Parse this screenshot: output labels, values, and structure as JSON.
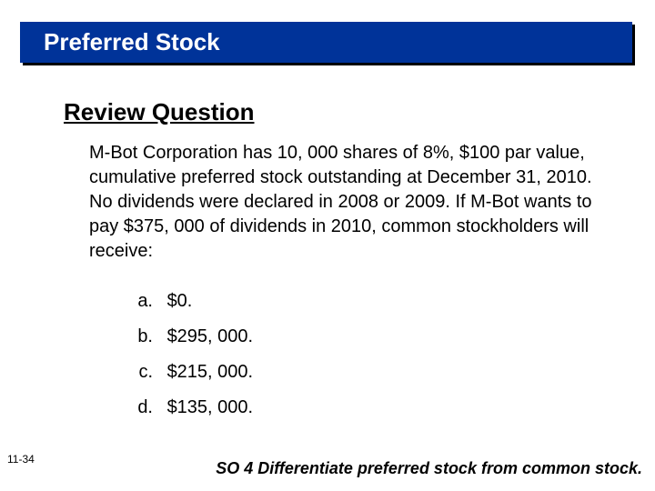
{
  "title": "Preferred Stock",
  "subtitle": "Review Question",
  "body": "M-Bot Corporation has 10, 000 shares of 8%, $100 par value, cumulative preferred stock outstanding at December 31, 2010. No dividends were declared in 2008 or 2009. If M-Bot wants to pay $375, 000 of dividends in 2010, common stockholders will receive:",
  "options": [
    {
      "letter": "a.",
      "text": "$0."
    },
    {
      "letter": "b.",
      "text": "$295, 000."
    },
    {
      "letter": "c.",
      "text": "$215, 000."
    },
    {
      "letter": "d.",
      "text": "$135, 000."
    }
  ],
  "slideNumber": "11-34",
  "footer": "SO 4  Differentiate preferred stock from common stock.",
  "colors": {
    "titleBg": "#003399",
    "titleText": "#ffffff",
    "pageBg": "#ffffff",
    "text": "#000000"
  }
}
